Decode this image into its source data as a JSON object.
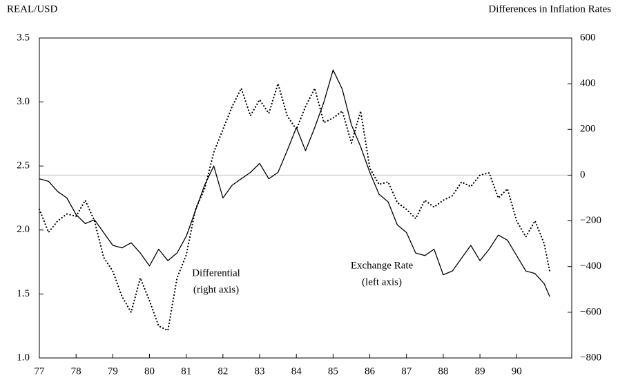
{
  "chart_data": {
    "type": "line",
    "y_label": "REAL/USD",
    "y2_label": "Differences in Inflation Rates",
    "x": [
      77,
      77.25,
      77.5,
      77.75,
      78,
      78.25,
      78.5,
      78.75,
      79,
      79.25,
      79.5,
      79.75,
      80,
      80.25,
      80.5,
      80.75,
      81,
      81.25,
      81.5,
      81.75,
      82,
      82.25,
      82.5,
      82.75,
      83,
      83.25,
      83.5,
      83.75,
      84,
      84.25,
      84.5,
      84.75,
      85,
      85.25,
      85.5,
      85.75,
      86,
      86.25,
      86.5,
      86.75,
      87,
      87.25,
      87.5,
      87.75,
      88,
      88.25,
      88.5,
      88.75,
      89,
      89.25,
      89.5,
      89.75,
      90,
      90.25,
      90.5,
      90.75,
      90.9
    ],
    "series": [
      {
        "name": "Exchange Rate",
        "color": "#000000",
        "style": "solid",
        "axis": "y",
        "values": [
          2.4,
          2.38,
          2.3,
          2.25,
          2.12,
          2.05,
          2.08,
          1.98,
          1.88,
          1.86,
          1.9,
          1.82,
          1.72,
          1.85,
          1.76,
          1.82,
          1.95,
          2.15,
          2.35,
          2.5,
          2.25,
          2.35,
          2.4,
          2.45,
          2.52,
          2.4,
          2.45,
          2.62,
          2.8,
          2.62,
          2.8,
          3.0,
          3.25,
          3.1,
          2.82,
          2.65,
          2.45,
          2.28,
          2.22,
          2.04,
          1.98,
          1.82,
          1.8,
          1.85,
          1.65,
          1.68,
          1.78,
          1.88,
          1.76,
          1.85,
          1.96,
          1.92,
          1.8,
          1.68,
          1.66,
          1.58,
          1.48
        ]
      },
      {
        "name": "Differential",
        "color": "#000000",
        "style": "dotted",
        "axis": "y2",
        "values": [
          -150,
          -250,
          -200,
          -170,
          -180,
          -110,
          -200,
          -360,
          -420,
          -530,
          -600,
          -450,
          -550,
          -660,
          -680,
          -450,
          -350,
          -150,
          -60,
          100,
          200,
          300,
          380,
          260,
          330,
          270,
          400,
          260,
          200,
          300,
          380,
          230,
          250,
          280,
          140,
          280,
          30,
          -40,
          -30,
          -120,
          -150,
          -190,
          -110,
          -140,
          -110,
          -90,
          -30,
          -50,
          0,
          10,
          -100,
          -60,
          -200,
          -270,
          -200,
          -300,
          -420
        ]
      }
    ],
    "annotations": [
      {
        "text": [
          "Exchange Rate",
          "(left axis)"
        ],
        "series": 0
      },
      {
        "text": [
          "Differential",
          "(right axis)"
        ],
        "series": 1
      }
    ],
    "xlim": [
      77,
      91.5
    ],
    "xticks": [
      77,
      78,
      79,
      80,
      81,
      82,
      83,
      84,
      85,
      86,
      87,
      88,
      89,
      90
    ],
    "ylim": [
      1,
      3.5
    ],
    "yticks": [
      {
        "value": 1,
        "label": "1.0"
      },
      1.5,
      {
        "value": 2,
        "label": "2.0"
      },
      2.5,
      {
        "value": 3,
        "label": "3.0"
      },
      3.5
    ],
    "y2lim": [
      -800,
      600
    ],
    "y2ticks": [
      {
        "value": -800,
        "label": "−800"
      },
      {
        "value": -600,
        "label": "−600"
      },
      {
        "value": -400,
        "label": "−400"
      },
      {
        "value": -200,
        "label": "−200"
      },
      0,
      200,
      400,
      600
    ],
    "reference_line": {
      "axis": "y2",
      "value": 0,
      "color": "#bbbbbb"
    }
  }
}
